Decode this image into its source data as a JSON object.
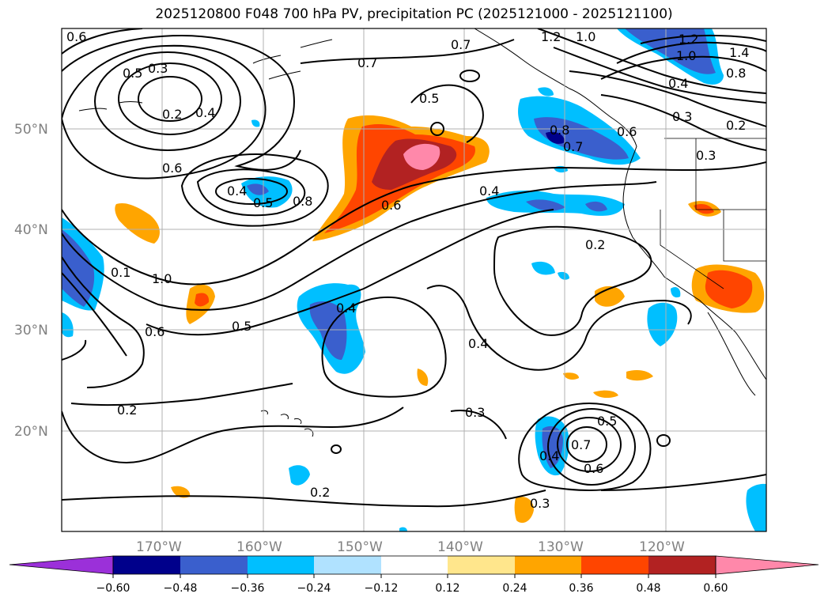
{
  "title": "2025120800 F048 700 hPa PV, precipitation PC (2025121000 - 2025121100)",
  "lat_labels": [
    "50°N",
    "40°N",
    "30°N",
    "20°N"
  ],
  "lon_labels": [
    "170°W",
    "160°W",
    "150°W",
    "140°W",
    "130°W",
    "120°W"
  ],
  "contour_labels": [
    "0.6",
    "0.5",
    "0.3",
    "0.2",
    "0.4",
    "0.6",
    "0.4",
    "0.5",
    "0.8",
    "0.7",
    "0.5",
    "0.6",
    "0.4",
    "1.2",
    "1.0",
    "0.7",
    "1.2",
    "1.0",
    "1.4",
    "0.8",
    "0.4",
    "0.3",
    "0.2",
    "0.6",
    "0.3",
    "0.7",
    "0.8",
    "0.1",
    "1.0",
    "0.6",
    "0.5",
    "0.4",
    "0.2",
    "0.4",
    "0.3",
    "0.2",
    "0.4",
    "0.7",
    "0.5",
    "0.6",
    "0.3",
    "0.2"
  ],
  "colorbar": {
    "ticks": [
      "−0.60",
      "−0.48",
      "−0.36",
      "−0.24",
      "−0.12",
      "0.12",
      "0.24",
      "0.36",
      "0.48",
      "0.60"
    ],
    "colors": [
      "#9b30d9",
      "#00008b",
      "#3a5fcd",
      "#00bfff",
      "#b0e2ff",
      "#ffffff",
      "#ffe68c",
      "#ffa500",
      "#ff4500",
      "#b22222",
      "#ff88aa"
    ]
  },
  "precip_colors": {
    "light_blue": "#00bfff",
    "mid_blue": "#3a5fcd",
    "dark_blue": "#00008b",
    "orange": "#ffa500",
    "red_orange": "#ff4500",
    "dark_red": "#b22222",
    "pink": "#ff88aa"
  }
}
